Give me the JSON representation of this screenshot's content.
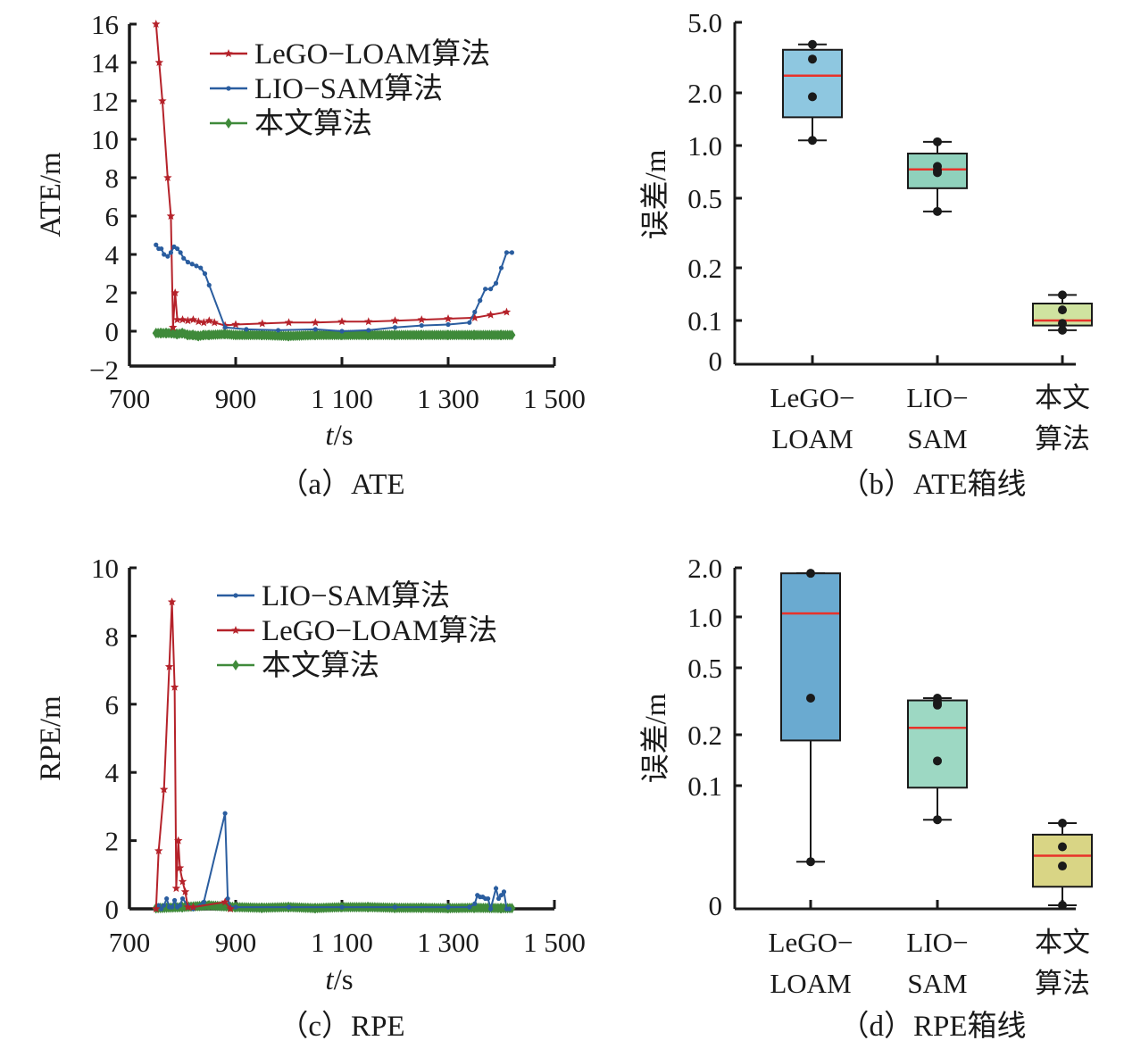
{
  "chart_data": [
    {
      "id": "a",
      "type": "line",
      "caption": "（a）ATE",
      "xlabel_italic": "t",
      "xlabel_rest": "/s",
      "ylabel": "ATE/m",
      "xlim": [
        700,
        1500
      ],
      "ylim": [
        -2,
        16
      ],
      "xticks": [
        700,
        900,
        1100,
        1300,
        1500
      ],
      "xtick_labels": [
        "700",
        "900",
        "1 100",
        "1 300",
        "1 500"
      ],
      "yticks": [
        -2,
        0,
        2,
        4,
        6,
        8,
        10,
        12,
        14,
        16
      ],
      "ytick_labels": [
        "−2",
        "0",
        "2",
        "4",
        "6",
        "8",
        "10",
        "12",
        "14",
        "16"
      ],
      "legend_position": "top-right",
      "series": [
        {
          "name": "LeGO−LOAM算法",
          "color": "#b5222a",
          "marker": "star",
          "x": [
            750,
            756,
            762,
            772,
            778,
            782,
            786,
            790,
            800,
            810,
            820,
            830,
            840,
            850,
            860,
            880,
            900,
            950,
            1000,
            1050,
            1100,
            1150,
            1200,
            1250,
            1300,
            1350,
            1380,
            1410
          ],
          "y": [
            16,
            14,
            12,
            8,
            6,
            0.2,
            2,
            0.6,
            0.6,
            0.55,
            0.6,
            0.5,
            0.45,
            0.55,
            0.45,
            0.3,
            0.35,
            0.4,
            0.45,
            0.45,
            0.5,
            0.5,
            0.55,
            0.6,
            0.65,
            0.7,
            0.85,
            1.0
          ]
        },
        {
          "name": "LIO−SAM算法",
          "color": "#2a5d9f",
          "marker": "dot",
          "x": [
            750,
            755,
            760,
            765,
            772,
            778,
            784,
            790,
            796,
            802,
            810,
            818,
            826,
            834,
            842,
            850,
            880,
            920,
            980,
            1050,
            1100,
            1150,
            1200,
            1250,
            1300,
            1340,
            1350,
            1360,
            1370,
            1380,
            1390,
            1400,
            1410,
            1420
          ],
          "y": [
            4.5,
            4.3,
            4.3,
            4.0,
            3.9,
            4.1,
            4.4,
            4.3,
            4.1,
            3.8,
            3.6,
            3.5,
            3.4,
            3.3,
            3.0,
            2.4,
            0.2,
            0.1,
            0.05,
            0.1,
            0.0,
            0.05,
            0.2,
            0.3,
            0.35,
            0.45,
            1.0,
            1.6,
            2.2,
            2.2,
            2.5,
            3.3,
            4.1,
            4.1
          ]
        },
        {
          "name": "本文算法",
          "color": "#3f8a3a",
          "marker": "diamond",
          "x": [
            750,
            760,
            770,
            780,
            790,
            800,
            810,
            820,
            830,
            840,
            850,
            880,
            900,
            950,
            1000,
            1050,
            1100,
            1150,
            1200,
            1250,
            1300,
            1350,
            1400,
            1420
          ],
          "y": [
            -0.1,
            -0.1,
            -0.1,
            -0.1,
            -0.15,
            -0.1,
            -0.2,
            -0.2,
            -0.25,
            -0.2,
            -0.2,
            -0.15,
            -0.2,
            -0.2,
            -0.25,
            -0.2,
            -0.2,
            -0.2,
            -0.2,
            -0.2,
            -0.2,
            -0.2,
            -0.2,
            -0.2
          ]
        }
      ]
    },
    {
      "id": "b",
      "type": "box",
      "caption": "（b）ATE箱线",
      "ylabel": "误差/m",
      "yscale": "log-like",
      "yticks": [
        0,
        0.1,
        0.2,
        0.5,
        1.0,
        2.0,
        5.0
      ],
      "ytick_labels": [
        "0",
        "0.1",
        "0.2",
        "0.5",
        "1.0",
        "2.0",
        "5.0"
      ],
      "categories": [
        [
          "LeGO−",
          "LOAM"
        ],
        [
          "LIO−",
          "SAM"
        ],
        [
          "本文",
          "算法"
        ]
      ],
      "boxes": [
        {
          "name": "LeGO−LOAM",
          "color": "#8ec7e0",
          "whisker_low": 1.07,
          "q1": 1.45,
          "median": 2.5,
          "q3": 3.5,
          "whisker_high": 3.75,
          "points": [
            3.75,
            3.1,
            1.9,
            1.07
          ]
        },
        {
          "name": "LIO−SAM",
          "color": "#8fd1bc",
          "whisker_low": 0.42,
          "q1": 0.57,
          "median": 0.73,
          "q3": 0.9,
          "whisker_high": 1.05,
          "points": [
            1.05,
            0.76,
            0.72,
            0.7,
            0.42
          ]
        },
        {
          "name": "本文算法",
          "color": "#cfe3a0",
          "whisker_low": 0.065,
          "q1": 0.08,
          "median": 0.1,
          "q3": 0.125,
          "whisker_high": 0.14,
          "points": [
            0.14,
            0.115,
            0.088,
            0.065
          ]
        }
      ]
    },
    {
      "id": "c",
      "type": "line",
      "caption": "（c）RPE",
      "xlabel_italic": "t",
      "xlabel_rest": "/s",
      "ylabel": "RPE/m",
      "xlim": [
        700,
        1500
      ],
      "ylim": [
        0,
        10
      ],
      "xticks": [
        700,
        900,
        1100,
        1300,
        1500
      ],
      "xtick_labels": [
        "700",
        "900",
        "1 100",
        "1 300",
        "1 500"
      ],
      "yticks": [
        0,
        2,
        4,
        6,
        8,
        10
      ],
      "ytick_labels": [
        "0",
        "2",
        "4",
        "6",
        "8",
        "10"
      ],
      "legend_position": "top-right",
      "series": [
        {
          "name": "LIO−SAM算法",
          "color": "#2a5d9f",
          "marker": "dot",
          "x": [
            750,
            755,
            760,
            765,
            770,
            775,
            780,
            785,
            790,
            795,
            800,
            810,
            820,
            840,
            880,
            885,
            890,
            900,
            1000,
            1100,
            1200,
            1300,
            1340,
            1350,
            1355,
            1360,
            1365,
            1370,
            1375,
            1380,
            1390,
            1395,
            1400,
            1405,
            1410,
            1415
          ],
          "y": [
            0,
            0.1,
            0,
            0.1,
            0.3,
            0.05,
            0.05,
            0.25,
            0.05,
            0.1,
            0.3,
            0.1,
            0,
            0.2,
            2.8,
            0.3,
            0.05,
            0.05,
            0.05,
            0.05,
            0.05,
            0.05,
            0.05,
            0.15,
            0.4,
            0.35,
            0.35,
            0.3,
            0.3,
            0.0,
            0.6,
            0.3,
            0.4,
            0.5,
            0.0,
            0.0
          ]
        },
        {
          "name": "LeGO−LOAM算法",
          "color": "#b5222a",
          "marker": "star",
          "x": [
            750,
            755,
            765,
            775,
            780,
            785,
            788,
            792,
            795,
            800,
            805,
            810,
            820,
            880,
            890
          ],
          "y": [
            0,
            1.7,
            3.5,
            7.1,
            9.0,
            6.5,
            0.6,
            2.0,
            1.2,
            0.8,
            0.5,
            0.05,
            0.05,
            0.2,
            0.0
          ]
        },
        {
          "name": "本文算法",
          "color": "#3f8a3a",
          "marker": "diamond",
          "x": [
            750,
            800,
            850,
            900,
            950,
            1000,
            1050,
            1100,
            1150,
            1200,
            1250,
            1300,
            1350,
            1400,
            1420
          ],
          "y": [
            0.02,
            0.05,
            0.1,
            0.05,
            0.03,
            0.05,
            0.02,
            0.05,
            0.05,
            0.03,
            0.03,
            0.02,
            0.03,
            0.02,
            0.02
          ]
        }
      ]
    },
    {
      "id": "d",
      "type": "box",
      "caption": "（d）RPE箱线",
      "ylabel": "误差/m",
      "yscale": "log-like",
      "yticks": [
        0,
        0.1,
        0.2,
        0.5,
        1.0,
        2.0
      ],
      "ytick_labels": [
        "0",
        "0.1",
        "0.2",
        "0.5",
        "1.0",
        "2.0"
      ],
      "categories": [
        [
          "LeGO−",
          "LOAM"
        ],
        [
          "LIO−",
          "SAM"
        ],
        [
          "本文",
          "算法"
        ]
      ],
      "boxes": [
        {
          "name": "LeGO−LOAM",
          "color": "#6aaad0",
          "whisker_low": 0.032,
          "q1": 0.185,
          "median": 1.05,
          "q3": 1.85,
          "whisker_high": 1.85,
          "points": [
            1.85,
            0.33,
            0.032
          ]
        },
        {
          "name": "LIO−SAM",
          "color": "#9dd8c3",
          "whisker_low": 0.06,
          "q1": 0.097,
          "median": 0.22,
          "q3": 0.32,
          "whisker_high": 0.33,
          "points": [
            0.33,
            0.31,
            0.3,
            0.14,
            0.06
          ]
        },
        {
          "name": "本文算法",
          "color": "#d9d585",
          "whisker_low": 0.0,
          "q1": 0.022,
          "median": 0.035,
          "q3": 0.048,
          "whisker_high": 0.057,
          "points": [
            0.057,
            0.04,
            0.03,
            0.0
          ]
        }
      ]
    }
  ]
}
